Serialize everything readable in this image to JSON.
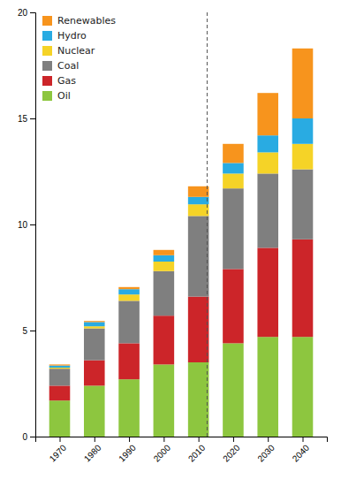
{
  "chart_data": {
    "type": "bar",
    "stacked": true,
    "grid": false,
    "legend": "upper left",
    "x": [
      1970,
      1980,
      1990,
      2000,
      2010,
      2020,
      2030,
      2040
    ],
    "xlim": [
      1963,
      2047
    ],
    "xticks": [
      1970,
      1980,
      1990,
      2000,
      2010,
      2020,
      2030,
      2040
    ],
    "ylim": [
      0,
      20
    ],
    "yticks": [
      0,
      5,
      10,
      15,
      20
    ],
    "reference_line_x": 2012.5,
    "series": [
      {
        "name": "Oil",
        "color": "#8dc63f",
        "values": [
          1.7,
          2.4,
          2.7,
          3.4,
          3.5,
          4.4,
          4.7,
          4.7
        ]
      },
      {
        "name": "Gas",
        "color": "#cc2529",
        "values": [
          0.7,
          1.2,
          1.7,
          2.3,
          3.1,
          3.5,
          4.2,
          4.6
        ]
      },
      {
        "name": "Coal",
        "color": "#7f7f7f",
        "values": [
          0.8,
          1.5,
          2.0,
          2.1,
          3.8,
          3.8,
          3.5,
          3.3
        ]
      },
      {
        "name": "Nuclear",
        "color": "#f5d327",
        "values": [
          0.05,
          0.1,
          0.3,
          0.45,
          0.55,
          0.7,
          1.0,
          1.2
        ]
      },
      {
        "name": "Hydro",
        "color": "#29abe2",
        "values": [
          0.1,
          0.2,
          0.25,
          0.3,
          0.35,
          0.5,
          0.8,
          1.2
        ]
      },
      {
        "name": "Renewables",
        "color": "#f7941d",
        "values": [
          0.05,
          0.05,
          0.1,
          0.25,
          0.5,
          0.9,
          2.0,
          3.3
        ]
      }
    ]
  }
}
